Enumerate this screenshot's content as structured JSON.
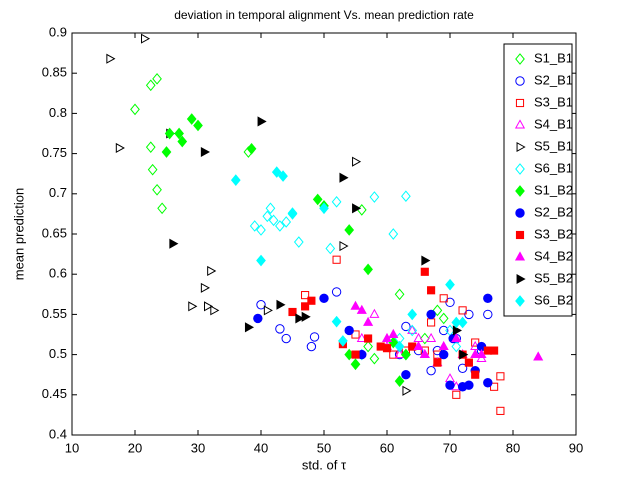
{
  "chart_data": {
    "type": "scatter",
    "title": "deviation in temporal alignment Vs. mean prediction rate",
    "xlabel": "std. of τ",
    "ylabel": "mean prediction",
    "xlim": [
      10,
      90
    ],
    "xticks": [
      10,
      20,
      30,
      40,
      50,
      60,
      70,
      80,
      90
    ],
    "ylim": [
      0.4,
      0.9
    ],
    "yticks": [
      0.4,
      0.45,
      0.5,
      0.55,
      0.6,
      0.65,
      0.7,
      0.75,
      0.8,
      0.85,
      0.9
    ],
    "legend": "upper right",
    "series": [
      {
        "name": "S1_B1",
        "color": "#00ff00",
        "marker": "diamond",
        "filled": false,
        "x": [
          20,
          22.5,
          23.5,
          22.5,
          22.8,
          23.5,
          24.3,
          38,
          56,
          57,
          58,
          62,
          63,
          68,
          69,
          66
        ],
        "values": [
          0.805,
          0.835,
          0.843,
          0.758,
          0.73,
          0.705,
          0.682,
          0.752,
          0.68,
          0.51,
          0.495,
          0.575,
          0.5,
          0.555,
          0.545,
          0.52
        ]
      },
      {
        "name": "S2_B1",
        "color": "#0000ff",
        "marker": "circle",
        "filled": false,
        "x": [
          40,
          43,
          44,
          48,
          48.5,
          52,
          62,
          63,
          65,
          67,
          68,
          69,
          70,
          71,
          72,
          73,
          75,
          76
        ],
        "values": [
          0.562,
          0.532,
          0.52,
          0.51,
          0.522,
          0.578,
          0.5,
          0.535,
          0.505,
          0.48,
          0.505,
          0.53,
          0.565,
          0.52,
          0.483,
          0.55,
          0.505,
          0.55
        ]
      },
      {
        "name": "S3_B1",
        "color": "#ff0000",
        "marker": "square",
        "filled": false,
        "x": [
          47,
          52,
          55,
          61,
          63,
          66,
          67,
          68,
          69,
          71,
          72,
          74,
          77,
          78,
          78
        ],
        "values": [
          0.574,
          0.618,
          0.525,
          0.5,
          0.505,
          0.505,
          0.54,
          0.5,
          0.57,
          0.45,
          0.555,
          0.515,
          0.46,
          0.473,
          0.43
        ]
      },
      {
        "name": "S4_B1",
        "color": "#ff00ff",
        "marker": "triangle-up",
        "filled": false,
        "x": [
          56,
          58,
          60,
          62,
          64,
          65,
          66,
          67,
          68,
          70,
          71,
          72,
          74,
          75
        ],
        "values": [
          0.52,
          0.55,
          0.51,
          0.5,
          0.53,
          0.52,
          0.5,
          0.52,
          0.49,
          0.47,
          0.46,
          0.5,
          0.51,
          0.495
        ]
      },
      {
        "name": "S5_B1",
        "color": "#000000",
        "marker": "triangle-right",
        "filled": false,
        "x": [
          16,
          17.5,
          21.5,
          25.5,
          29,
          31,
          31.5,
          32,
          32.5,
          41,
          53,
          55,
          63
        ],
        "values": [
          0.868,
          0.757,
          0.893,
          0.775,
          0.56,
          0.583,
          0.56,
          0.604,
          0.555,
          0.555,
          0.635,
          0.74,
          0.455
        ]
      },
      {
        "name": "S6_B1",
        "color": "#00ffff",
        "marker": "diamond",
        "filled": false,
        "x": [
          39,
          40,
          41,
          41.5,
          42,
          43,
          44,
          45,
          46,
          51,
          52,
          56,
          58,
          61,
          62,
          63,
          64,
          70,
          71
        ],
        "values": [
          0.66,
          0.655,
          0.672,
          0.682,
          0.667,
          0.66,
          0.665,
          0.675,
          0.64,
          0.632,
          0.69,
          0.5,
          0.696,
          0.65,
          0.52,
          0.697,
          0.53,
          0.53,
          0.51
        ]
      },
      {
        "name": "S1_B2",
        "color": "#00ff00",
        "marker": "diamond",
        "filled": true,
        "x": [
          25,
          25.5,
          27,
          27.5,
          29,
          30,
          38.5,
          49,
          50,
          54,
          57,
          54,
          55,
          61,
          62,
          63
        ],
        "values": [
          0.752,
          0.775,
          0.775,
          0.765,
          0.793,
          0.785,
          0.756,
          0.693,
          0.685,
          0.655,
          0.606,
          0.5,
          0.488,
          0.515,
          0.467,
          0.5
        ]
      },
      {
        "name": "S2_B2",
        "color": "#0000ff",
        "marker": "circle",
        "filled": true,
        "x": [
          39.5,
          50,
          54,
          56,
          63,
          67,
          69,
          70,
          70.5,
          72,
          73,
          74,
          75,
          76,
          76
        ],
        "values": [
          0.545,
          0.57,
          0.53,
          0.5,
          0.475,
          0.55,
          0.5,
          0.462,
          0.52,
          0.46,
          0.462,
          0.48,
          0.51,
          0.465,
          0.57
        ]
      },
      {
        "name": "S3_B2",
        "color": "#ff0000",
        "marker": "square",
        "filled": true,
        "x": [
          45,
          47,
          48,
          53,
          55,
          57,
          59,
          60,
          64,
          66,
          67,
          68,
          72,
          73,
          74,
          76,
          77
        ],
        "values": [
          0.553,
          0.56,
          0.567,
          0.513,
          0.5,
          0.52,
          0.51,
          0.508,
          0.51,
          0.603,
          0.58,
          0.49,
          0.5,
          0.49,
          0.475,
          0.505,
          0.505
        ]
      },
      {
        "name": "S4_B2",
        "color": "#ff00ff",
        "marker": "triangle-up",
        "filled": true,
        "x": [
          55,
          56,
          57,
          60,
          61,
          65,
          66,
          69,
          71,
          74,
          75,
          84
        ],
        "values": [
          0.56,
          0.555,
          0.54,
          0.52,
          0.525,
          0.51,
          0.5,
          0.51,
          0.52,
          0.5,
          0.5,
          0.497
        ]
      },
      {
        "name": "S5_B2",
        "color": "#000000",
        "marker": "triangle-right",
        "filled": true,
        "x": [
          26,
          31,
          38,
          40,
          43,
          46,
          47,
          53,
          55,
          66,
          71,
          72
        ],
        "values": [
          0.638,
          0.752,
          0.534,
          0.79,
          0.562,
          0.545,
          0.547,
          0.72,
          0.682,
          0.617,
          0.53,
          0.5
        ]
      },
      {
        "name": "S6_B2",
        "color": "#00ffff",
        "marker": "diamond",
        "filled": true,
        "x": [
          36,
          40,
          42.5,
          43.5,
          45,
          50,
          52,
          53,
          62,
          64,
          70,
          71,
          72
        ],
        "values": [
          0.717,
          0.617,
          0.727,
          0.722,
          0.676,
          0.682,
          0.541,
          0.517,
          0.51,
          0.55,
          0.587,
          0.54,
          0.54
        ]
      }
    ]
  }
}
